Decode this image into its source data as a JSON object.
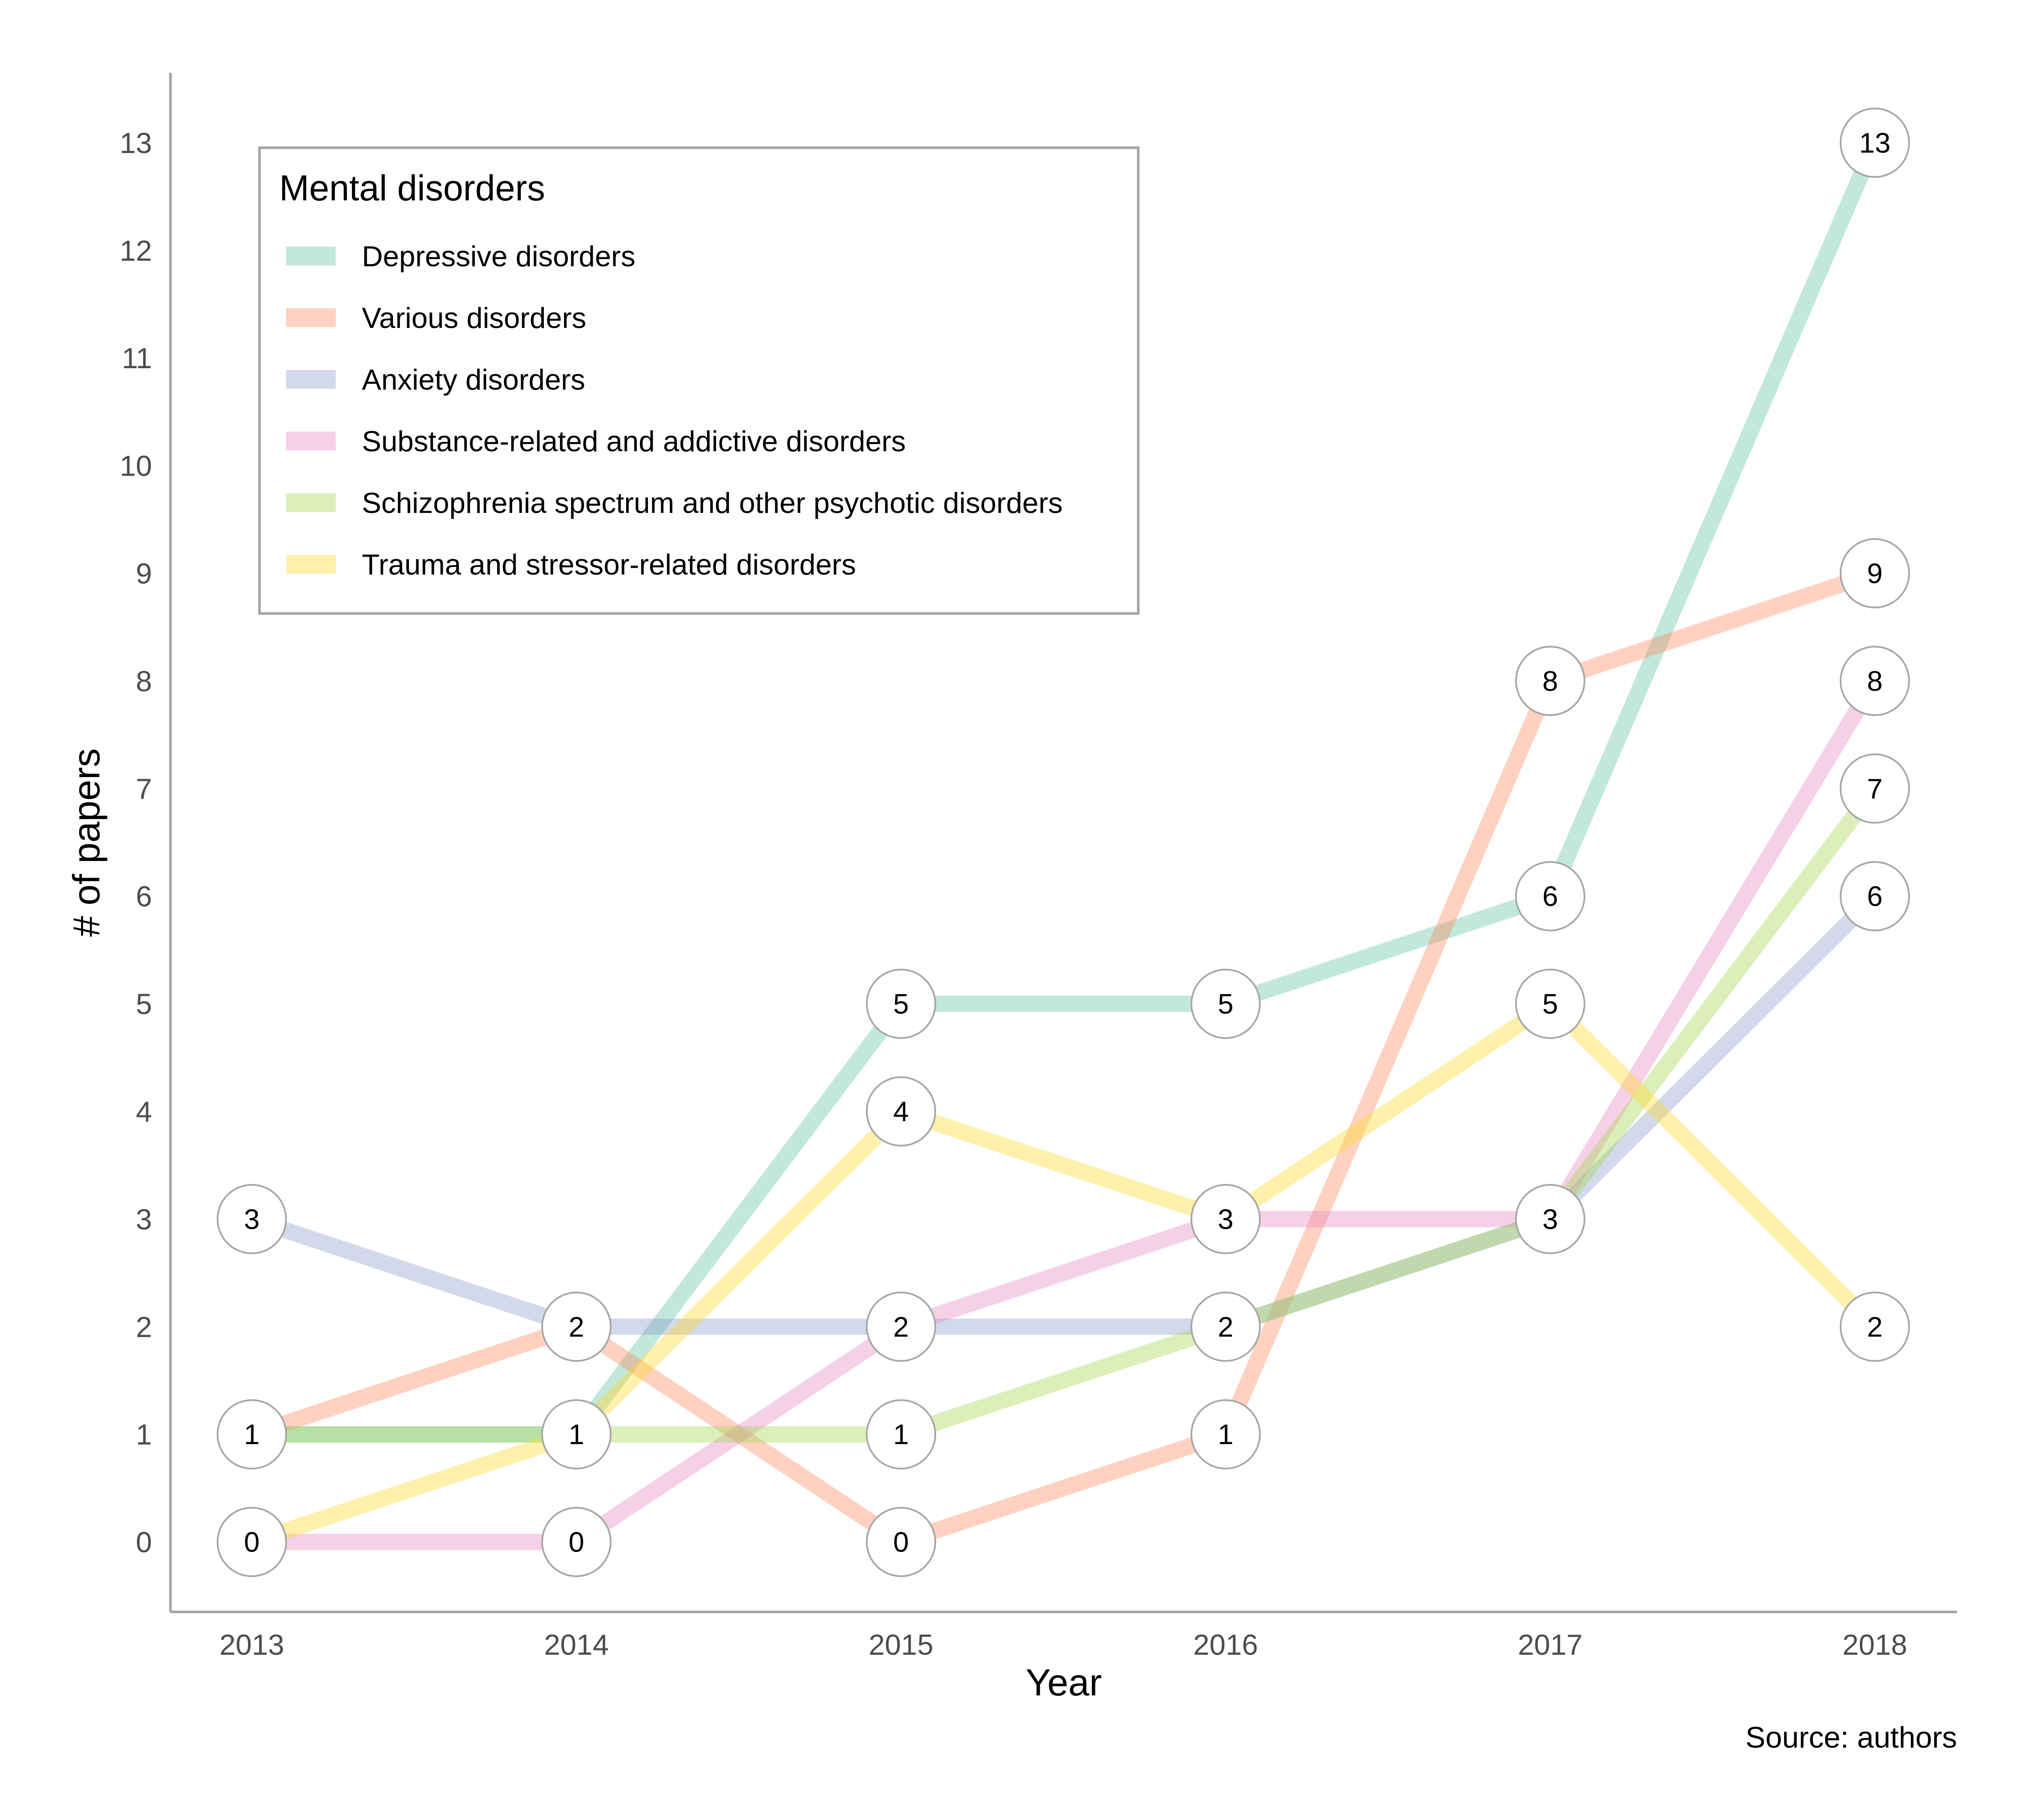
{
  "chart_data": {
    "type": "line",
    "title": "",
    "xlabel": "Year",
    "ylabel": "# of papers",
    "caption": "Source: authors",
    "x": [
      "2013",
      "2014",
      "2015",
      "2016",
      "2017",
      "2018"
    ],
    "yticks": [
      "0",
      "1",
      "2",
      "3",
      "4",
      "5",
      "6",
      "7",
      "8",
      "9",
      "10",
      "11",
      "12",
      "13"
    ],
    "ylim": [
      -0.65,
      13.65
    ],
    "grid": false,
    "legend": {
      "title": "Mental disorders",
      "position": "top-left"
    },
    "series": [
      {
        "name": "Depressive disorders",
        "color": "#66c2a5",
        "values": [
          1,
          1,
          5,
          5,
          6,
          13
        ]
      },
      {
        "name": "Various disorders",
        "color": "#fc8d62",
        "values": [
          1,
          2,
          0,
          1,
          8,
          9
        ]
      },
      {
        "name": "Anxiety disorders",
        "color": "#8da0cb",
        "values": [
          3,
          2,
          2,
          2,
          3,
          6
        ]
      },
      {
        "name": "Substance-related and addictive disorders",
        "color": "#e78ac3",
        "values": [
          0,
          0,
          2,
          3,
          3,
          8
        ]
      },
      {
        "name": "Schizophrenia spectrum and other psychotic disorders",
        "color": "#a6d854",
        "values": [
          1,
          1,
          1,
          2,
          3,
          7
        ]
      },
      {
        "name": "Trauma and stressor-related disorders",
        "color": "#ffd92f",
        "values": [
          0,
          1,
          4,
          3,
          5,
          2
        ]
      }
    ],
    "point_labels": [
      {
        "x": "2013",
        "y": 3,
        "text": "3"
      },
      {
        "x": "2013",
        "y": 1,
        "text": "1"
      },
      {
        "x": "2013",
        "y": 0,
        "text": "0"
      },
      {
        "x": "2014",
        "y": 2,
        "text": "2"
      },
      {
        "x": "2014",
        "y": 1,
        "text": "1"
      },
      {
        "x": "2014",
        "y": 0,
        "text": "0"
      },
      {
        "x": "2015",
        "y": 5,
        "text": "5"
      },
      {
        "x": "2015",
        "y": 4,
        "text": "4"
      },
      {
        "x": "2015",
        "y": 2,
        "text": "2"
      },
      {
        "x": "2015",
        "y": 1,
        "text": "1"
      },
      {
        "x": "2015",
        "y": 0,
        "text": "0"
      },
      {
        "x": "2016",
        "y": 5,
        "text": "5"
      },
      {
        "x": "2016",
        "y": 3,
        "text": "3"
      },
      {
        "x": "2016",
        "y": 2,
        "text": "2"
      },
      {
        "x": "2016",
        "y": 1,
        "text": "1"
      },
      {
        "x": "2017",
        "y": 8,
        "text": "8"
      },
      {
        "x": "2017",
        "y": 6,
        "text": "6"
      },
      {
        "x": "2017",
        "y": 5,
        "text": "5"
      },
      {
        "x": "2017",
        "y": 3,
        "text": "3"
      },
      {
        "x": "2018",
        "y": 13,
        "text": "13"
      },
      {
        "x": "2018",
        "y": 9,
        "text": "9"
      },
      {
        "x": "2018",
        "y": 8,
        "text": "8"
      },
      {
        "x": "2018",
        "y": 7,
        "text": "7"
      },
      {
        "x": "2018",
        "y": 6,
        "text": "6"
      },
      {
        "x": "2018",
        "y": 2,
        "text": "2"
      }
    ]
  }
}
